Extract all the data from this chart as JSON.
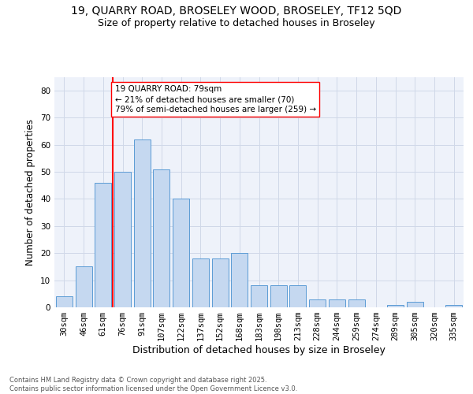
{
  "title_line1": "19, QUARRY ROAD, BROSELEY WOOD, BROSELEY, TF12 5QD",
  "title_line2": "Size of property relative to detached houses in Broseley",
  "xlabel": "Distribution of detached houses by size in Broseley",
  "ylabel": "Number of detached properties",
  "categories": [
    "30sqm",
    "46sqm",
    "61sqm",
    "76sqm",
    "91sqm",
    "107sqm",
    "122sqm",
    "137sqm",
    "152sqm",
    "168sqm",
    "183sqm",
    "198sqm",
    "213sqm",
    "228sqm",
    "244sqm",
    "259sqm",
    "274sqm",
    "289sqm",
    "305sqm",
    "320sqm",
    "335sqm"
  ],
  "values": [
    4,
    15,
    46,
    50,
    62,
    51,
    40,
    18,
    18,
    20,
    8,
    8,
    8,
    3,
    3,
    3,
    0,
    1,
    2,
    0,
    1
  ],
  "bar_color": "#c5d8f0",
  "bar_edge_color": "#5b9bd5",
  "grid_color": "#d0d8e8",
  "bg_color": "#eef2fa",
  "vline_index": 3,
  "vline_color": "red",
  "annotation_text": "19 QUARRY ROAD: 79sqm\n← 21% of detached houses are smaller (70)\n79% of semi-detached houses are larger (259) →",
  "annotation_box_color": "white",
  "annotation_box_edge": "red",
  "ylim": [
    0,
    85
  ],
  "yticks": [
    0,
    10,
    20,
    30,
    40,
    50,
    60,
    70,
    80
  ],
  "footer": "Contains HM Land Registry data © Crown copyright and database right 2025.\nContains public sector information licensed under the Open Government Licence v3.0.",
  "title_fontsize": 10,
  "subtitle_fontsize": 9,
  "axis_label_fontsize": 8.5,
  "tick_fontsize": 7.5,
  "footer_fontsize": 6,
  "annotation_fontsize": 7.5
}
